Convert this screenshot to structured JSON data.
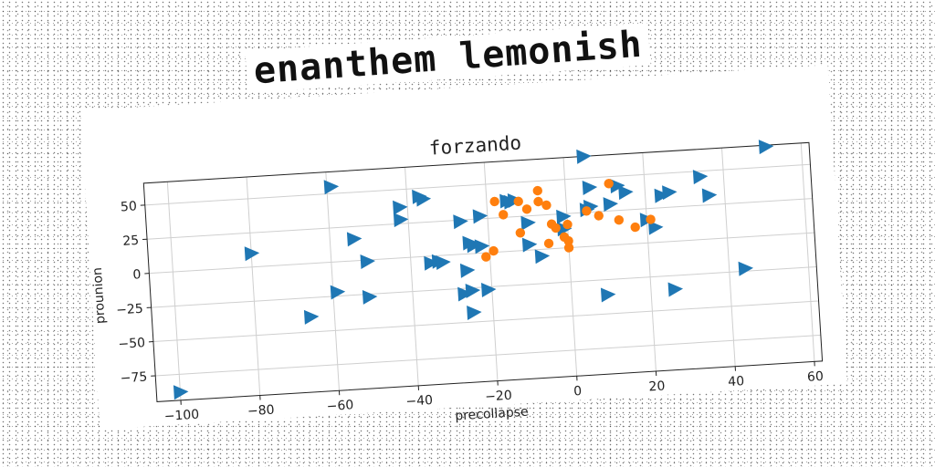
{
  "headline": "enanthem lemonish",
  "chart_data": {
    "type": "scatter",
    "title": "forzando",
    "xlabel": "precollapse",
    "ylabel": "prounion",
    "xlim": [
      -106,
      62
    ],
    "ylim": [
      -94,
      66
    ],
    "xticks": [
      -100,
      -80,
      -60,
      -40,
      -20,
      0,
      20,
      40,
      60
    ],
    "yticks": [
      -75,
      -50,
      -25,
      0,
      25,
      50
    ],
    "grid": true,
    "colors": {
      "series_a": "#1f77b4",
      "series_b": "#ff7f0e"
    },
    "series": [
      {
        "marker": "triangle-right",
        "color": "#1f77b4",
        "points": [
          [
            -100,
            -88
          ],
          [
            -80,
            10
          ],
          [
            -66,
            -39
          ],
          [
            -59,
            55
          ],
          [
            -59,
            -22
          ],
          [
            -54,
            16
          ],
          [
            -51,
            -1
          ],
          [
            -51,
            -27
          ],
          [
            -42,
            37
          ],
          [
            -42,
            28
          ],
          [
            -37,
            44
          ],
          [
            -36,
            42
          ],
          [
            -35,
            -5
          ],
          [
            -33,
            -4
          ],
          [
            -32,
            -5
          ],
          [
            -27,
            24
          ],
          [
            -27,
            -29
          ],
          [
            -26,
            -12
          ],
          [
            -25,
            -27
          ],
          [
            -25,
            8
          ],
          [
            -25,
            -43
          ],
          [
            -24,
            6
          ],
          [
            -22,
            27
          ],
          [
            -22,
            5
          ],
          [
            -21,
            -27
          ],
          [
            -15,
            37
          ],
          [
            -14,
            36
          ],
          [
            -13,
            37
          ],
          [
            -10,
            20
          ],
          [
            -10,
            4
          ],
          [
            -7,
            -5
          ],
          [
            -1,
            23
          ],
          [
            -1,
            14
          ],
          [
            5,
            66
          ],
          [
            5,
            27
          ],
          [
            6,
            43
          ],
          [
            6,
            29
          ],
          [
            9,
            -36
          ],
          [
            20,
            17
          ],
          [
            22,
            11
          ],
          [
            24,
            34
          ],
          [
            26,
            36
          ],
          [
            26,
            -35
          ],
          [
            34,
            46
          ],
          [
            36,
            32
          ],
          [
            44,
            -23
          ],
          [
            51,
            65
          ],
          [
            13,
            43
          ],
          [
            15,
            38
          ],
          [
            11,
            30
          ]
        ]
      },
      {
        "marker": "circle",
        "color": "#ff7f0e",
        "points": [
          [
            -21,
            -3
          ],
          [
            -19,
            1
          ],
          [
            -18,
            37
          ],
          [
            -16,
            27
          ],
          [
            -12,
            36
          ],
          [
            -12,
            13
          ],
          [
            -10,
            30
          ],
          [
            -7,
            43
          ],
          [
            -7,
            35
          ],
          [
            -5,
            32
          ],
          [
            -5,
            4
          ],
          [
            -4,
            18
          ],
          [
            -3,
            15
          ],
          [
            -1,
            8
          ],
          [
            0,
            5
          ],
          [
            0,
            0
          ],
          [
            0,
            17
          ],
          [
            5,
            26
          ],
          [
            8,
            22
          ],
          [
            11,
            45
          ],
          [
            13,
            18
          ],
          [
            17,
            12
          ],
          [
            21,
            17
          ]
        ]
      }
    ]
  }
}
